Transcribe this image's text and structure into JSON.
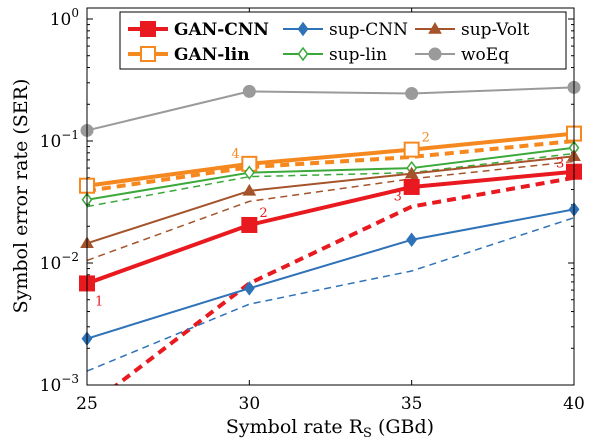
{
  "chart_data": {
    "type": "line",
    "xlabel": "Symbol rate R",
    "xlabel_sub": "S",
    "xlabel_unit": "(GBd)",
    "ylabel": "Symbol error rate (SER)",
    "x": [
      25,
      30,
      35,
      40
    ],
    "xlim": [
      25,
      40
    ],
    "ylim": [
      0.001,
      1.5
    ],
    "yscale": "log",
    "x_ticks": [
      "25",
      "30",
      "35",
      "40"
    ],
    "y_ticks": [
      {
        "value": 0.001,
        "base": "10",
        "exp": "−3"
      },
      {
        "value": 0.01,
        "base": "10",
        "exp": "−2"
      },
      {
        "value": 0.1,
        "base": "10",
        "exp": "−1"
      },
      {
        "value": 1,
        "base": "10",
        "exp": "0"
      }
    ],
    "legend_position": "top",
    "series": [
      {
        "name": "GAN-CNN",
        "color": "#e8191f",
        "marker": "square-filled",
        "line": "solid",
        "width": 4,
        "bold": true,
        "values": [
          0.0068,
          0.0205,
          0.042,
          0.056
        ]
      },
      {
        "name": "",
        "color": "#e8191f",
        "marker": "none",
        "line": "dashed",
        "width": 4,
        "values": [
          0.00065,
          0.0068,
          0.029,
          0.05
        ]
      },
      {
        "name": "GAN-lin",
        "color": "#f5881f",
        "marker": "square-open",
        "line": "solid",
        "width": 4,
        "bold": true,
        "values": [
          0.043,
          0.065,
          0.085,
          0.115
        ]
      },
      {
        "name": "",
        "color": "#f5881f",
        "marker": "none",
        "line": "dashed",
        "width": 4,
        "values": [
          0.039,
          0.061,
          0.074,
          0.1
        ]
      },
      {
        "name": "sup-CNN",
        "color": "#2f72b8",
        "marker": "diamond-filled",
        "line": "solid",
        "width": 2,
        "values": [
          0.0024,
          0.0062,
          0.0155,
          0.0275
        ]
      },
      {
        "name": "",
        "color": "#2f72b8",
        "marker": "none",
        "line": "dashed",
        "width": 1.5,
        "values": [
          0.0013,
          0.0046,
          0.0086,
          0.0235
        ]
      },
      {
        "name": "sup-lin",
        "color": "#3aa93a",
        "marker": "diamond-open",
        "line": "solid",
        "width": 2,
        "values": [
          0.033,
          0.055,
          0.06,
          0.088
        ]
      },
      {
        "name": "",
        "color": "#3aa93a",
        "marker": "none",
        "line": "dashed",
        "width": 1.5,
        "values": [
          0.029,
          0.051,
          0.055,
          0.079
        ]
      },
      {
        "name": "sup-Volt",
        "color": "#a5532a",
        "marker": "triangle-filled",
        "line": "solid",
        "width": 2,
        "values": [
          0.0145,
          0.039,
          0.054,
          0.075
        ]
      },
      {
        "name": "",
        "color": "#a5532a",
        "marker": "none",
        "line": "dashed",
        "width": 1.5,
        "values": [
          0.0105,
          0.032,
          0.049,
          0.068
        ]
      },
      {
        "name": "woEq",
        "color": "#9a9a9a",
        "marker": "circle-filled",
        "line": "solid",
        "width": 2,
        "values": [
          0.122,
          0.255,
          0.245,
          0.275
        ]
      }
    ],
    "annotations": [
      {
        "text": "1",
        "x": 25,
        "y": 0.0068,
        "color": "#e8191f",
        "anchor": "below-right"
      },
      {
        "text": "2",
        "x": 30,
        "y": 0.0205,
        "color": "#e8191f",
        "anchor": "above-right"
      },
      {
        "text": "3",
        "x": 35,
        "y": 0.029,
        "color": "#e8191f",
        "anchor": "above-left"
      },
      {
        "text": "3",
        "x": 40,
        "y": 0.05,
        "color": "#e8191f",
        "anchor": "below-left"
      },
      {
        "text": "4",
        "x": 30,
        "y": 0.065,
        "color": "#f5881f",
        "anchor": "above-left"
      },
      {
        "text": "2",
        "x": 35,
        "y": 0.085,
        "color": "#f5881f",
        "anchor": "above-right"
      }
    ]
  }
}
